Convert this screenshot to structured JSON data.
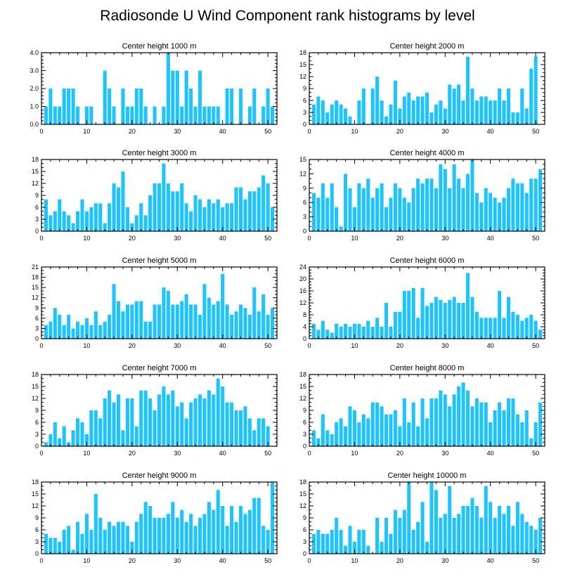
{
  "figure": {
    "title": "Radiosonde U Wind Component rank histograms by level",
    "bar_color": "#1ec4ff",
    "x_ticks": [
      0,
      10,
      20,
      30,
      40,
      50
    ],
    "x_minor_step": 2
  },
  "chart_data": [
    {
      "type": "bar",
      "title": "Center height 1000 m",
      "categories": [
        1,
        2,
        3,
        4,
        5,
        6,
        7,
        8,
        9,
        10,
        11,
        12,
        13,
        14,
        15,
        16,
        17,
        18,
        19,
        20,
        21,
        22,
        23,
        24,
        25,
        26,
        27,
        28,
        29,
        30,
        31,
        32,
        33,
        34,
        35,
        36,
        37,
        38,
        39,
        40,
        41,
        42,
        43,
        44,
        45,
        46,
        47,
        48,
        49,
        50,
        51
      ],
      "values": [
        1,
        2,
        1,
        1,
        2,
        2,
        2,
        1,
        0,
        1,
        1,
        0,
        0,
        3,
        2,
        1,
        0,
        2,
        1,
        1,
        2,
        2,
        1,
        0,
        1,
        0,
        1,
        4,
        3,
        3,
        1,
        3,
        2,
        1,
        3,
        1,
        1,
        1,
        1,
        0,
        2,
        2,
        0,
        2,
        0,
        1,
        2,
        0,
        1,
        2,
        1
      ],
      "ylim": [
        0,
        4
      ],
      "yticks": [
        "0.0",
        "1.0",
        "2.0",
        "3.0",
        "4.0"
      ],
      "ytick_values": [
        0,
        1,
        2,
        3,
        4
      ],
      "y_minor_step": 0.2
    },
    {
      "type": "bar",
      "title": "Center height 2000 m",
      "categories": [
        1,
        2,
        3,
        4,
        5,
        6,
        7,
        8,
        9,
        10,
        11,
        12,
        13,
        14,
        15,
        16,
        17,
        18,
        19,
        20,
        21,
        22,
        23,
        24,
        25,
        26,
        27,
        28,
        29,
        30,
        31,
        32,
        33,
        34,
        35,
        36,
        37,
        38,
        39,
        40,
        41,
        42,
        43,
        44,
        45,
        46,
        47,
        48,
        49,
        50,
        51
      ],
      "values": [
        5,
        7,
        6,
        3,
        5,
        6,
        5,
        4,
        2,
        0,
        6,
        9,
        0,
        9,
        12,
        6,
        2,
        5,
        11,
        4,
        7,
        8,
        6,
        7,
        7,
        8,
        3,
        5,
        6,
        4,
        10,
        9,
        10,
        6,
        17,
        9,
        6,
        7,
        7,
        6,
        6,
        9,
        6,
        9,
        3,
        3,
        9,
        4,
        14,
        17,
        0
      ],
      "ylim": [
        0,
        18
      ],
      "yticks": [
        "0",
        "3",
        "6",
        "9",
        "12",
        "15",
        "18"
      ],
      "ytick_values": [
        0,
        3,
        6,
        9,
        12,
        15,
        18
      ],
      "y_minor_step": 1
    },
    {
      "type": "bar",
      "title": "Center height 3000 m",
      "categories": [
        1,
        2,
        3,
        4,
        5,
        6,
        7,
        8,
        9,
        10,
        11,
        12,
        13,
        14,
        15,
        16,
        17,
        18,
        19,
        20,
        21,
        22,
        23,
        24,
        25,
        26,
        27,
        28,
        29,
        30,
        31,
        32,
        33,
        34,
        35,
        36,
        37,
        38,
        39,
        40,
        41,
        42,
        43,
        44,
        45,
        46,
        47,
        48,
        49,
        50,
        51
      ],
      "values": [
        8,
        4,
        5,
        8,
        5,
        4,
        2,
        5,
        8,
        5,
        6,
        7,
        7,
        2,
        7,
        12,
        11,
        15,
        6,
        2,
        4,
        7,
        4,
        9,
        12,
        12,
        17,
        12,
        10,
        10,
        12,
        7,
        5,
        9,
        8,
        6,
        8,
        7,
        8,
        6,
        7,
        7,
        11,
        11,
        8,
        10,
        10,
        11,
        14,
        12,
        6
      ],
      "ylim": [
        0,
        18
      ],
      "yticks": [
        "0",
        "3",
        "6",
        "9",
        "12",
        "15",
        "18"
      ],
      "ytick_values": [
        0,
        3,
        6,
        9,
        12,
        15,
        18
      ],
      "y_minor_step": 1
    },
    {
      "type": "bar",
      "title": "Center height 4000 m",
      "categories": [
        1,
        2,
        3,
        4,
        5,
        6,
        7,
        8,
        9,
        10,
        11,
        12,
        13,
        14,
        15,
        16,
        17,
        18,
        19,
        20,
        21,
        22,
        23,
        24,
        25,
        26,
        27,
        28,
        29,
        30,
        31,
        32,
        33,
        34,
        35,
        36,
        37,
        38,
        39,
        40,
        41,
        42,
        43,
        44,
        45,
        46,
        47,
        48,
        49,
        50,
        51
      ],
      "values": [
        8,
        7,
        10,
        7,
        10,
        5,
        1,
        12,
        9,
        5,
        10,
        9,
        11,
        7,
        9,
        10,
        5,
        7,
        10,
        9,
        7,
        6,
        9,
        11,
        10,
        11,
        11,
        9,
        14,
        13,
        9,
        14,
        11,
        9,
        12,
        15,
        8,
        6,
        9,
        8,
        7,
        6,
        7,
        9,
        11,
        10,
        10,
        8,
        11,
        11,
        13
      ],
      "ylim": [
        0,
        15
      ],
      "yticks": [
        "0",
        "3",
        "6",
        "9",
        "12",
        "15"
      ],
      "ytick_values": [
        0,
        3,
        6,
        9,
        12,
        15
      ],
      "y_minor_step": 1
    },
    {
      "type": "bar",
      "title": "Center height 5000 m",
      "categories": [
        1,
        2,
        3,
        4,
        5,
        6,
        7,
        8,
        9,
        10,
        11,
        12,
        13,
        14,
        15,
        16,
        17,
        18,
        19,
        20,
        21,
        22,
        23,
        24,
        25,
        26,
        27,
        28,
        29,
        30,
        31,
        32,
        33,
        34,
        35,
        36,
        37,
        38,
        39,
        40,
        41,
        42,
        43,
        44,
        45,
        46,
        47,
        48,
        49,
        50,
        51
      ],
      "values": [
        4,
        5,
        9,
        7,
        4,
        7,
        3,
        5,
        4,
        6,
        4,
        8,
        4,
        5,
        7,
        16,
        11,
        8,
        10,
        10,
        11,
        11,
        5,
        5,
        10,
        10,
        15,
        14,
        10,
        10,
        11,
        13,
        10,
        10,
        7,
        16,
        12,
        10,
        11,
        19,
        10,
        7,
        8,
        10,
        9,
        7,
        15,
        8,
        13,
        7,
        9
      ],
      "ylim": [
        0,
        21
      ],
      "yticks": [
        "0",
        "3",
        "6",
        "9",
        "12",
        "15",
        "18",
        "21"
      ],
      "ytick_values": [
        0,
        3,
        6,
        9,
        12,
        15,
        18,
        21
      ],
      "y_minor_step": 1
    },
    {
      "type": "bar",
      "title": "Center height 6000 m",
      "categories": [
        1,
        2,
        3,
        4,
        5,
        6,
        7,
        8,
        9,
        10,
        11,
        12,
        13,
        14,
        15,
        16,
        17,
        18,
        19,
        20,
        21,
        22,
        23,
        24,
        25,
        26,
        27,
        28,
        29,
        30,
        31,
        32,
        33,
        34,
        35,
        36,
        37,
        38,
        39,
        40,
        41,
        42,
        43,
        44,
        45,
        46,
        47,
        48,
        49,
        50,
        51
      ],
      "values": [
        5,
        3,
        6,
        3,
        2,
        5,
        4,
        5,
        4,
        5,
        5,
        4,
        6,
        4,
        7,
        4,
        12,
        4,
        9,
        9,
        16,
        16,
        17,
        7,
        17,
        11,
        12,
        14,
        13,
        12,
        13,
        14,
        12,
        12,
        22,
        14,
        9,
        7,
        7,
        7,
        7,
        16,
        7,
        14,
        9,
        8,
        6,
        7,
        8,
        6,
        3
      ],
      "ylim": [
        0,
        24
      ],
      "yticks": [
        "0",
        "4",
        "8",
        "12",
        "16",
        "20",
        "24"
      ],
      "ytick_values": [
        0,
        4,
        8,
        12,
        16,
        20,
        24
      ],
      "y_minor_step": 1
    },
    {
      "type": "bar",
      "title": "Center height 7000 m",
      "categories": [
        1,
        2,
        3,
        4,
        5,
        6,
        7,
        8,
        9,
        10,
        11,
        12,
        13,
        14,
        15,
        16,
        17,
        18,
        19,
        20,
        21,
        22,
        23,
        24,
        25,
        26,
        27,
        28,
        29,
        30,
        31,
        32,
        33,
        34,
        35,
        36,
        37,
        38,
        39,
        40,
        41,
        42,
        43,
        44,
        45,
        46,
        47,
        48,
        49,
        50,
        51
      ],
      "values": [
        1,
        3,
        6,
        2,
        5,
        1,
        4,
        7,
        6,
        3,
        9,
        9,
        7,
        12,
        14,
        11,
        13,
        4,
        12,
        12,
        5,
        14,
        14,
        12,
        9,
        13,
        15,
        13,
        14,
        10,
        11,
        7,
        11,
        12,
        13,
        12,
        14,
        13,
        17,
        15,
        11,
        11,
        9,
        9,
        10,
        7,
        4,
        7,
        7,
        5,
        0
      ],
      "ylim": [
        0,
        18
      ],
      "yticks": [
        "0",
        "3",
        "6",
        "9",
        "12",
        "15",
        "18"
      ],
      "ytick_values": [
        0,
        3,
        6,
        9,
        12,
        15,
        18
      ],
      "y_minor_step": 1
    },
    {
      "type": "bar",
      "title": "Center height 8000 m",
      "categories": [
        1,
        2,
        3,
        4,
        5,
        6,
        7,
        8,
        9,
        10,
        11,
        12,
        13,
        14,
        15,
        16,
        17,
        18,
        19,
        20,
        21,
        22,
        23,
        24,
        25,
        26,
        27,
        28,
        29,
        30,
        31,
        32,
        33,
        34,
        35,
        36,
        37,
        38,
        39,
        40,
        41,
        42,
        43,
        44,
        45,
        46,
        47,
        48,
        49,
        50,
        51
      ],
      "values": [
        4,
        2,
        8,
        4,
        3,
        6,
        7,
        5,
        10,
        9,
        6,
        8,
        7,
        11,
        11,
        10,
        8,
        8,
        9,
        5,
        12,
        6,
        11,
        5,
        12,
        7,
        12,
        12,
        14,
        13,
        10,
        13,
        15,
        16,
        14,
        10,
        12,
        11,
        11,
        6,
        9,
        11,
        9,
        12,
        12,
        8,
        6,
        9,
        2,
        6,
        11
      ],
      "ylim": [
        0,
        18
      ],
      "yticks": [
        "0",
        "3",
        "6",
        "9",
        "12",
        "15",
        "18"
      ],
      "ytick_values": [
        0,
        3,
        6,
        9,
        12,
        15,
        18
      ],
      "y_minor_step": 1
    },
    {
      "type": "bar",
      "title": "Center height 9000 m",
      "categories": [
        1,
        2,
        3,
        4,
        5,
        6,
        7,
        8,
        9,
        10,
        11,
        12,
        13,
        14,
        15,
        16,
        17,
        18,
        19,
        20,
        21,
        22,
        23,
        24,
        25,
        26,
        27,
        28,
        29,
        30,
        31,
        32,
        33,
        34,
        35,
        36,
        37,
        38,
        39,
        40,
        41,
        42,
        43,
        44,
        45,
        46,
        47,
        48,
        49,
        50,
        51
      ],
      "values": [
        5,
        4,
        4,
        3,
        6,
        7,
        1,
        8,
        5,
        10,
        6,
        15,
        9,
        6,
        8,
        7,
        8,
        8,
        7,
        3,
        8,
        10,
        13,
        12,
        9,
        9,
        9,
        10,
        13,
        9,
        11,
        8,
        10,
        7,
        9,
        10,
        13,
        11,
        16,
        12,
        7,
        12,
        8,
        12,
        10,
        11,
        14,
        14,
        7,
        6,
        18
      ],
      "ylim": [
        0,
        18
      ],
      "yticks": [
        "0",
        "3",
        "6",
        "9",
        "12",
        "15",
        "18"
      ],
      "ytick_values": [
        0,
        3,
        6,
        9,
        12,
        15,
        18
      ],
      "y_minor_step": 1
    },
    {
      "type": "bar",
      "title": "Center height 10000 m",
      "categories": [
        1,
        2,
        3,
        4,
        5,
        6,
        7,
        8,
        9,
        10,
        11,
        12,
        13,
        14,
        15,
        16,
        17,
        18,
        19,
        20,
        21,
        22,
        23,
        24,
        25,
        26,
        27,
        28,
        29,
        30,
        31,
        32,
        33,
        34,
        35,
        36,
        37,
        38,
        39,
        40,
        41,
        42,
        43,
        44,
        45,
        46,
        47,
        48,
        49,
        50,
        51
      ],
      "values": [
        5,
        6,
        5,
        5,
        6,
        9,
        6,
        2,
        7,
        3,
        6,
        6,
        2,
        0,
        9,
        3,
        9,
        5,
        11,
        9,
        11,
        18,
        6,
        8,
        13,
        3,
        18,
        16,
        9,
        10,
        17,
        9,
        10,
        12,
        12,
        14,
        12,
        9,
        17,
        13,
        9,
        12,
        10,
        12,
        7,
        13,
        10,
        8,
        7,
        6,
        9
      ],
      "ylim": [
        0,
        18
      ],
      "yticks": [
        "0",
        "3",
        "6",
        "9",
        "12",
        "15",
        "18"
      ],
      "ytick_values": [
        0,
        3,
        6,
        9,
        12,
        15,
        18
      ],
      "y_minor_step": 1
    }
  ]
}
